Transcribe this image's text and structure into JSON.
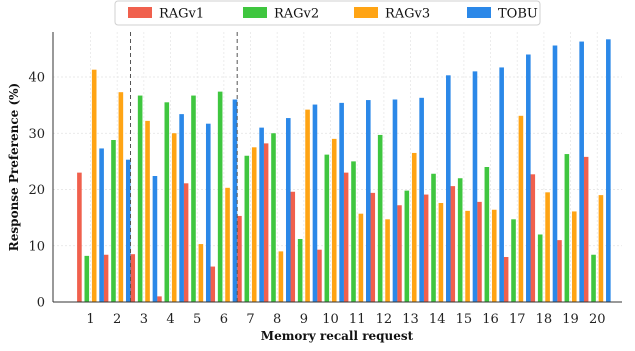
{
  "chart_data": {
    "type": "bar",
    "title": "",
    "xlabel": "Memory recall request",
    "ylabel": "Response Preference (%)",
    "ylim": [
      0,
      48
    ],
    "yticks": [
      0,
      10,
      20,
      30,
      40
    ],
    "grid": true,
    "legend_position": "top-center",
    "categories": [
      "1",
      "2",
      "3",
      "4",
      "5",
      "6",
      "7",
      "8",
      "9",
      "10",
      "11",
      "12",
      "13",
      "14",
      "15",
      "16",
      "17",
      "18",
      "19",
      "20"
    ],
    "series": [
      {
        "name": "RAGv1",
        "color": "#f0604d",
        "values": [
          23.0,
          8.4,
          8.5,
          1.0,
          21.1,
          6.3,
          15.3,
          28.2,
          19.6,
          9.3,
          23.0,
          19.4,
          17.2,
          19.1,
          20.6,
          17.8,
          8.0,
          22.7,
          11.0,
          25.8
        ]
      },
      {
        "name": "RAGv2",
        "color": "#3fc63f",
        "values": [
          8.2,
          28.8,
          36.7,
          35.5,
          36.7,
          37.4,
          26.0,
          30.0,
          11.2,
          26.2,
          25.0,
          29.7,
          19.8,
          22.8,
          22.0,
          24.0,
          14.7,
          12.0,
          26.3,
          8.4
        ]
      },
      {
        "name": "RAGv3",
        "color": "#ffa414",
        "values": [
          41.3,
          37.3,
          32.2,
          30.0,
          10.3,
          20.3,
          27.5,
          9.0,
          34.2,
          29.0,
          15.7,
          14.7,
          26.5,
          17.6,
          16.2,
          16.4,
          33.1,
          19.5,
          16.1,
          19.0
        ]
      },
      {
        "name": "TOBU",
        "color": "#2b88e8",
        "values": [
          27.3,
          25.3,
          22.4,
          33.4,
          31.7,
          36.0,
          31.0,
          32.7,
          35.1,
          35.4,
          35.9,
          36.0,
          36.3,
          40.3,
          41.0,
          41.7,
          44.0,
          45.6,
          46.3,
          46.7
        ]
      }
    ],
    "separators_after_category": [
      "2",
      "6"
    ]
  }
}
